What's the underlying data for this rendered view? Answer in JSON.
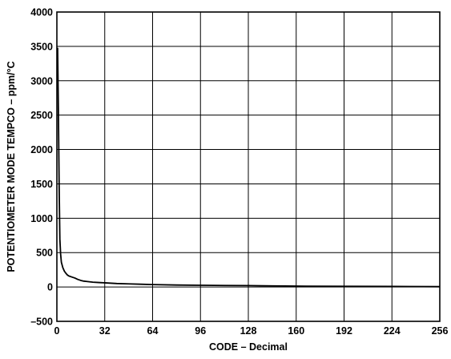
{
  "chart_data": {
    "type": "line",
    "title": "",
    "xlabel": "CODE – Decimal",
    "ylabel": "POTENTIOMETER MODE TEMPCO – ppm/°C",
    "xlim": [
      0,
      256
    ],
    "ylim": [
      -500,
      4000
    ],
    "xticks": [
      0,
      32,
      64,
      96,
      128,
      160,
      192,
      224,
      256
    ],
    "yticks": [
      -500,
      0,
      500,
      1000,
      1500,
      2000,
      2500,
      3000,
      3500,
      4000
    ],
    "x_tick_labels": [
      "0",
      "32",
      "64",
      "96",
      "128",
      "160",
      "192",
      "224",
      "256"
    ],
    "y_tick_labels": [
      "–500",
      "0",
      "500",
      "1000",
      "1500",
      "2000",
      "2500",
      "3000",
      "3500",
      "4000"
    ],
    "grid": true,
    "line_color": "#000000",
    "series": [
      {
        "x": [
          0.5,
          1,
          1.5,
          2,
          2.5,
          3,
          4,
          5,
          6,
          7,
          8,
          10,
          12,
          14,
          16,
          18,
          20,
          24,
          28,
          32,
          40,
          48,
          56,
          64,
          80,
          96,
          112,
          128,
          144,
          160,
          192,
          224,
          256
        ],
        "y": [
          3480,
          2600,
          1500,
          700,
          480,
          360,
          280,
          230,
          200,
          175,
          160,
          145,
          130,
          110,
          95,
          85,
          80,
          70,
          65,
          60,
          50,
          45,
          40,
          35,
          28,
          25,
          22,
          20,
          15,
          12,
          10,
          8,
          5
        ]
      }
    ]
  }
}
